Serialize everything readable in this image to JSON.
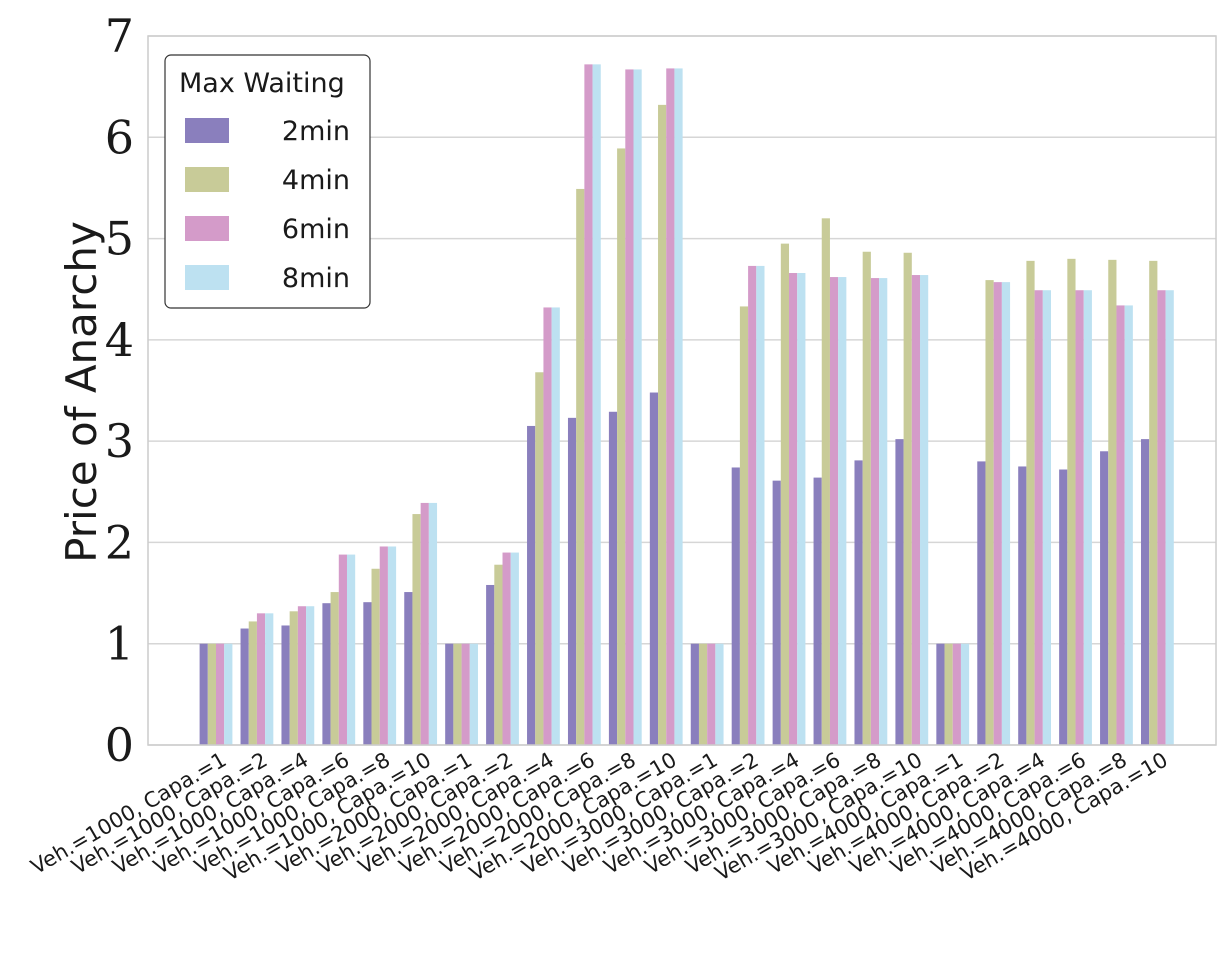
{
  "chart_data": {
    "type": "bar",
    "ylabel": "Price of Anarchy",
    "xlabel": "",
    "ylim": [
      0,
      7
    ],
    "yticks": [
      "0",
      "1",
      "2",
      "3",
      "4",
      "5",
      "6",
      "7"
    ],
    "grid": true,
    "legend": {
      "title": "Max Waiting",
      "placement": "top-left"
    },
    "categories": [
      "Veh.=1000, Capa.=1",
      "Veh.=1000, Capa.=2",
      "Veh.=1000, Capa.=4",
      "Veh.=1000, Capa.=6",
      "Veh.=1000, Capa.=8",
      "Veh.=1000, Capa.=10",
      "Veh.=2000, Capa.=1",
      "Veh.=2000, Capa.=2",
      "Veh.=2000, Capa.=4",
      "Veh.=2000, Capa.=6",
      "Veh.=2000, Capa.=8",
      "Veh.=2000, Capa.=10",
      "Veh.=3000, Capa.=1",
      "Veh.=3000, Capa.=2",
      "Veh.=3000, Capa.=4",
      "Veh.=3000, Capa.=6",
      "Veh.=3000, Capa.=8",
      "Veh.=3000, Capa.=10",
      "Veh.=4000, Capa.=1",
      "Veh.=4000, Capa.=2",
      "Veh.=4000, Capa.=4",
      "Veh.=4000, Capa.=6",
      "Veh.=4000, Capa.=8",
      "Veh.=4000, Capa.=10"
    ],
    "series": [
      {
        "name": "2min",
        "color": "#8a7fbd",
        "values": [
          1.0,
          1.15,
          1.18,
          1.4,
          1.41,
          1.51,
          1.0,
          1.58,
          3.15,
          3.23,
          3.29,
          3.48,
          1.0,
          2.74,
          2.61,
          2.64,
          2.81,
          3.02,
          1.0,
          2.8,
          2.75,
          2.72,
          2.9,
          3.02
        ]
      },
      {
        "name": "4min",
        "color": "#c8cb98",
        "values": [
          1.0,
          1.22,
          1.32,
          1.51,
          1.74,
          2.28,
          1.0,
          1.78,
          3.68,
          5.49,
          5.89,
          6.32,
          1.0,
          4.33,
          4.95,
          5.2,
          4.87,
          4.86,
          1.0,
          4.59,
          4.78,
          4.8,
          4.79,
          4.78
        ]
      },
      {
        "name": "6min",
        "color": "#d49bc9",
        "values": [
          1.0,
          1.3,
          1.37,
          1.88,
          1.96,
          2.39,
          1.0,
          1.9,
          4.32,
          6.72,
          6.67,
          6.68,
          1.0,
          4.73,
          4.66,
          4.62,
          4.61,
          4.64,
          1.0,
          4.57,
          4.49,
          4.49,
          4.34,
          4.49
        ]
      },
      {
        "name": "8min",
        "color": "#bde1f1",
        "values": [
          1.0,
          1.3,
          1.37,
          1.88,
          1.96,
          2.39,
          1.0,
          1.9,
          4.32,
          6.72,
          6.67,
          6.68,
          1.0,
          4.73,
          4.66,
          4.62,
          4.61,
          4.64,
          1.0,
          4.57,
          4.49,
          4.49,
          4.34,
          4.49
        ]
      }
    ]
  }
}
